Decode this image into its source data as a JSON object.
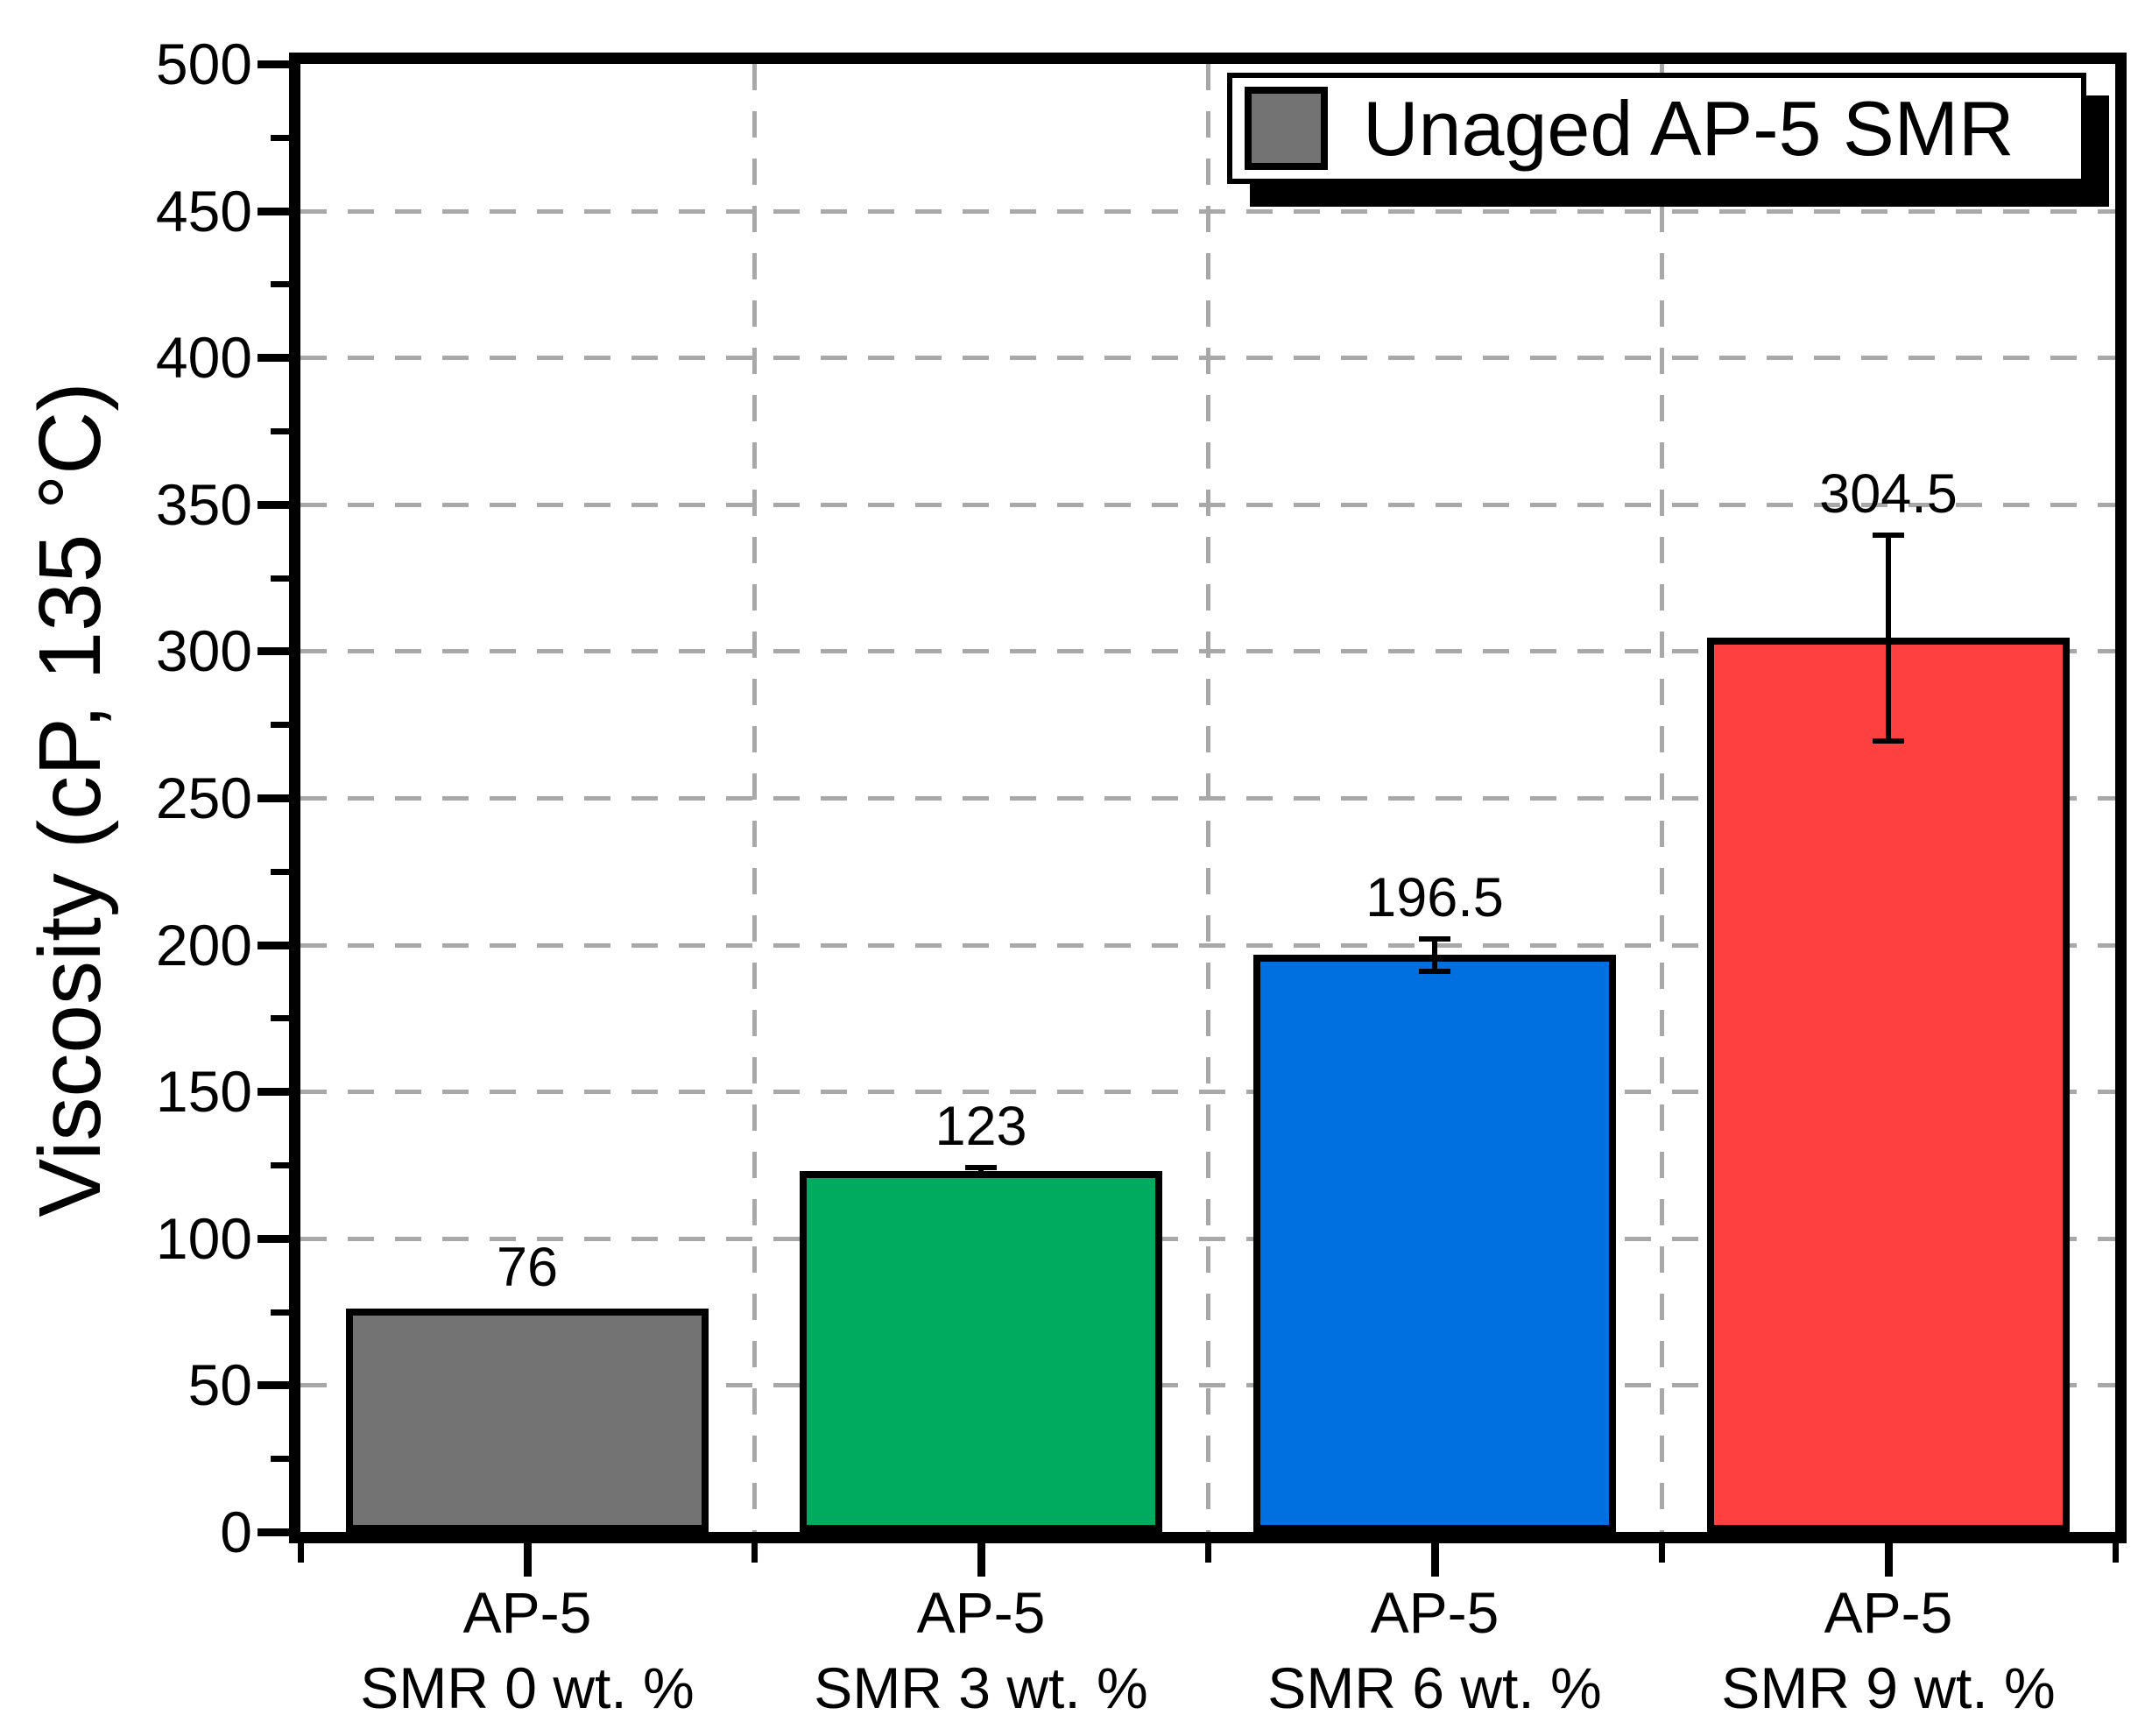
{
  "chart_data": {
    "type": "bar",
    "title": "",
    "xlabel": "",
    "ylabel": "Viscosity (cP, 135 °C)",
    "ylim": [
      0,
      500
    ],
    "y_major_step": 50,
    "y_minor_step": 25,
    "y_tick_labels": [
      "0",
      "50",
      "100",
      "150",
      "200",
      "250",
      "300",
      "350",
      "400",
      "450",
      "500"
    ],
    "grid": {
      "horizontal": "dashed gray lines at every major tick (50 cP spacing)",
      "vertical": "dashed gray lines at category boundaries",
      "color": "#A8A8A8",
      "on": true
    },
    "legend": {
      "label": "Unaged AP-5 SMR",
      "swatch_color": "#737373",
      "position": "top-right",
      "style": "white box, black border, black drop shadow"
    },
    "categories": [
      {
        "line1": "AP-5",
        "line2": "SMR 0 wt. %"
      },
      {
        "line1": "AP-5",
        "line2": "SMR 3 wt. %"
      },
      {
        "line1": "AP-5",
        "line2": "SMR 6 wt. %"
      },
      {
        "line1": "AP-5",
        "line2": "SMR 9 wt. %"
      }
    ],
    "series": [
      {
        "name": "Unaged AP-5 SMR",
        "values": [
          76,
          123,
          196.5,
          304.5
        ],
        "value_labels": [
          "76",
          "123",
          "196.5",
          "304.5"
        ],
        "error_bars": [
          0,
          1,
          5.5,
          35
        ],
        "bar_colors": [
          "#737373",
          "#00AB5F",
          "#0070E0",
          "#FF4040"
        ]
      }
    ],
    "axis_color": "#000000",
    "bar_border_color": "#000000"
  }
}
